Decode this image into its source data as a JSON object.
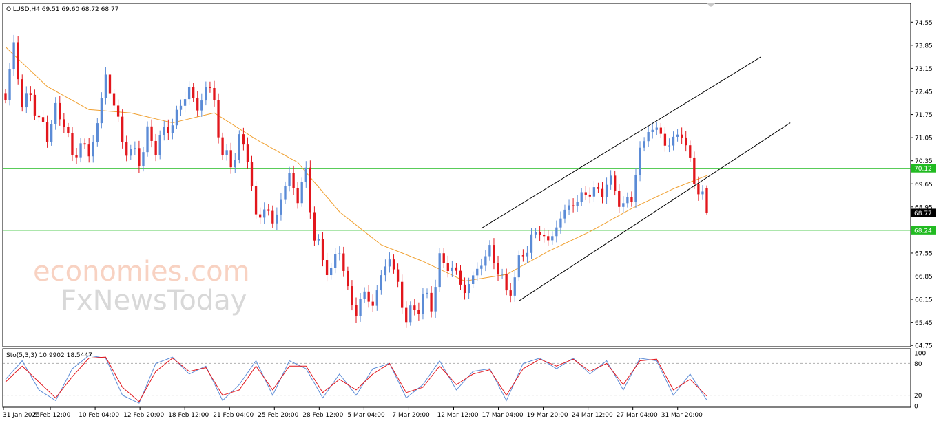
{
  "header": {
    "symbol_line": "OILUSD,H4  69.51 69.60 68.72 68.77"
  },
  "watermark": {
    "line1": "economies.com",
    "line2": "FxNewsToday"
  },
  "price_axis": {
    "ticks": [
      "74.55",
      "73.85",
      "73.15",
      "72.45",
      "71.75",
      "71.05",
      "70.35",
      "69.65",
      "68.95",
      "68.25",
      "67.55",
      "66.85",
      "66.15",
      "65.45",
      "64.75"
    ],
    "current_price_label": "68.77",
    "level_labels": [
      "70.12",
      "68.24"
    ]
  },
  "time_axis": {
    "labels": [
      "31 Jan 2025",
      "5 Feb 12:00",
      "10 Feb 04:00",
      "12 Feb 20:00",
      "18 Feb 12:00",
      "21 Feb 04:00",
      "25 Feb 20:00",
      "28 Feb 12:00",
      "5 Mar 04:00",
      "7 Mar 20:00",
      "12 Mar 12:00",
      "17 Mar 04:00",
      "19 Mar 20:00",
      "24 Mar 12:00",
      "27 Mar 04:00",
      "31 Mar 20:00"
    ]
  },
  "stochastic": {
    "label": "Sto(5,3,3) 10.9902 18.5447",
    "ticks": [
      "100",
      "80",
      "20",
      "0"
    ]
  },
  "colors": {
    "bull": "#5b8bd6",
    "bear": "#e2161c",
    "ma": "#f0a030",
    "level": "#22bb22",
    "current": "#999999",
    "stoch_main": "#5b8bd6",
    "stoch_signal": "#e2161c"
  },
  "chart_data": {
    "type": "candlestick",
    "symbol": "OILUSD",
    "timeframe": "H4",
    "ohlc_last": {
      "open": 69.51,
      "high": 69.6,
      "low": 68.72,
      "close": 68.77
    },
    "y_range": [
      64.75,
      74.55
    ],
    "levels": [
      70.12,
      68.24
    ],
    "current_price": 68.77,
    "close_path": [
      {
        "x": 0,
        "y": 72.2
      },
      {
        "x": 2,
        "y": 73.9
      },
      {
        "x": 4,
        "y": 72.0
      },
      {
        "x": 6,
        "y": 72.4
      },
      {
        "x": 8,
        "y": 71.5
      },
      {
        "x": 10,
        "y": 71.2
      },
      {
        "x": 12,
        "y": 71.8
      },
      {
        "x": 14,
        "y": 71.6
      },
      {
        "x": 16,
        "y": 70.4
      },
      {
        "x": 18,
        "y": 70.9
      },
      {
        "x": 20,
        "y": 70.5
      },
      {
        "x": 22,
        "y": 71.5
      },
      {
        "x": 24,
        "y": 72.9
      },
      {
        "x": 26,
        "y": 72.1
      },
      {
        "x": 28,
        "y": 70.9
      },
      {
        "x": 30,
        "y": 70.6
      },
      {
        "x": 32,
        "y": 70.4
      },
      {
        "x": 34,
        "y": 71.1
      },
      {
        "x": 36,
        "y": 70.8
      },
      {
        "x": 38,
        "y": 71.2
      },
      {
        "x": 40,
        "y": 71.5
      },
      {
        "x": 42,
        "y": 72.0
      },
      {
        "x": 44,
        "y": 72.6
      },
      {
        "x": 46,
        "y": 71.8
      },
      {
        "x": 48,
        "y": 72.7
      },
      {
        "x": 50,
        "y": 72.1
      },
      {
        "x": 52,
        "y": 70.5
      },
      {
        "x": 54,
        "y": 70.3
      },
      {
        "x": 56,
        "y": 70.9
      },
      {
        "x": 58,
        "y": 70.6
      },
      {
        "x": 60,
        "y": 68.5
      },
      {
        "x": 62,
        "y": 69.0
      },
      {
        "x": 64,
        "y": 68.4
      },
      {
        "x": 66,
        "y": 69.2
      },
      {
        "x": 68,
        "y": 69.9
      },
      {
        "x": 70,
        "y": 69.2
      },
      {
        "x": 72,
        "y": 70.0
      },
      {
        "x": 74,
        "y": 68.0
      },
      {
        "x": 76,
        "y": 67.4
      },
      {
        "x": 78,
        "y": 66.9
      },
      {
        "x": 80,
        "y": 67.8
      },
      {
        "x": 82,
        "y": 66.3
      },
      {
        "x": 84,
        "y": 65.8
      },
      {
        "x": 86,
        "y": 66.3
      },
      {
        "x": 88,
        "y": 66.0
      },
      {
        "x": 90,
        "y": 66.8
      },
      {
        "x": 92,
        "y": 67.5
      },
      {
        "x": 94,
        "y": 66.5
      },
      {
        "x": 96,
        "y": 65.6
      },
      {
        "x": 98,
        "y": 65.8
      },
      {
        "x": 100,
        "y": 66.2
      },
      {
        "x": 102,
        "y": 66.0
      },
      {
        "x": 104,
        "y": 67.3
      },
      {
        "x": 106,
        "y": 67.2
      },
      {
        "x": 108,
        "y": 66.9
      },
      {
        "x": 110,
        "y": 66.4
      },
      {
        "x": 112,
        "y": 66.8
      },
      {
        "x": 114,
        "y": 67.3
      },
      {
        "x": 116,
        "y": 67.6
      },
      {
        "x": 118,
        "y": 67.1
      },
      {
        "x": 120,
        "y": 66.3
      },
      {
        "x": 122,
        "y": 66.8
      },
      {
        "x": 124,
        "y": 67.6
      },
      {
        "x": 126,
        "y": 67.9
      },
      {
        "x": 128,
        "y": 68.3
      },
      {
        "x": 130,
        "y": 67.8
      },
      {
        "x": 132,
        "y": 68.4
      },
      {
        "x": 134,
        "y": 68.8
      },
      {
        "x": 136,
        "y": 69.1
      },
      {
        "x": 138,
        "y": 69.2
      },
      {
        "x": 140,
        "y": 69.5
      },
      {
        "x": 142,
        "y": 69.3
      },
      {
        "x": 144,
        "y": 69.7
      },
      {
        "x": 146,
        "y": 69.5
      },
      {
        "x": 148,
        "y": 68.9
      },
      {
        "x": 150,
        "y": 69.3
      },
      {
        "x": 152,
        "y": 70.6
      },
      {
        "x": 154,
        "y": 71.3
      },
      {
        "x": 156,
        "y": 71.3
      },
      {
        "x": 158,
        "y": 70.9
      },
      {
        "x": 160,
        "y": 70.9
      },
      {
        "x": 162,
        "y": 71.3
      },
      {
        "x": 164,
        "y": 70.2
      },
      {
        "x": 166,
        "y": 69.5
      },
      {
        "x": 168,
        "y": 68.77
      }
    ],
    "moving_average": [
      {
        "x": 0,
        "y": 73.8
      },
      {
        "x": 10,
        "y": 72.6
      },
      {
        "x": 20,
        "y": 71.9
      },
      {
        "x": 30,
        "y": 71.8
      },
      {
        "x": 40,
        "y": 71.5
      },
      {
        "x": 50,
        "y": 71.8
      },
      {
        "x": 60,
        "y": 71.0
      },
      {
        "x": 70,
        "y": 70.3
      },
      {
        "x": 80,
        "y": 68.8
      },
      {
        "x": 90,
        "y": 67.8
      },
      {
        "x": 100,
        "y": 67.3
      },
      {
        "x": 110,
        "y": 66.7
      },
      {
        "x": 120,
        "y": 66.9
      },
      {
        "x": 130,
        "y": 67.6
      },
      {
        "x": 140,
        "y": 68.2
      },
      {
        "x": 150,
        "y": 68.9
      },
      {
        "x": 160,
        "y": 69.5
      },
      {
        "x": 168,
        "y": 69.9
      }
    ],
    "channel_lines": [
      {
        "x1": 114,
        "y1": 68.3,
        "x2": 181,
        "y2": 73.5
      },
      {
        "x1": 123,
        "y1": 66.1,
        "x2": 188,
        "y2": 71.5
      }
    ],
    "stochastic_main": [
      {
        "x": 0,
        "y": 50
      },
      {
        "x": 4,
        "y": 85
      },
      {
        "x": 8,
        "y": 30
      },
      {
        "x": 12,
        "y": 10
      },
      {
        "x": 16,
        "y": 70
      },
      {
        "x": 20,
        "y": 95
      },
      {
        "x": 24,
        "y": 90
      },
      {
        "x": 28,
        "y": 20
      },
      {
        "x": 32,
        "y": 5
      },
      {
        "x": 36,
        "y": 80
      },
      {
        "x": 40,
        "y": 92
      },
      {
        "x": 44,
        "y": 60
      },
      {
        "x": 48,
        "y": 75
      },
      {
        "x": 52,
        "y": 10
      },
      {
        "x": 56,
        "y": 40
      },
      {
        "x": 60,
        "y": 85
      },
      {
        "x": 64,
        "y": 20
      },
      {
        "x": 68,
        "y": 85
      },
      {
        "x": 72,
        "y": 70
      },
      {
        "x": 76,
        "y": 15
      },
      {
        "x": 80,
        "y": 60
      },
      {
        "x": 84,
        "y": 20
      },
      {
        "x": 88,
        "y": 70
      },
      {
        "x": 92,
        "y": 80
      },
      {
        "x": 96,
        "y": 15
      },
      {
        "x": 100,
        "y": 40
      },
      {
        "x": 104,
        "y": 85
      },
      {
        "x": 108,
        "y": 30
      },
      {
        "x": 112,
        "y": 65
      },
      {
        "x": 116,
        "y": 70
      },
      {
        "x": 120,
        "y": 10
      },
      {
        "x": 124,
        "y": 80
      },
      {
        "x": 128,
        "y": 90
      },
      {
        "x": 132,
        "y": 70
      },
      {
        "x": 136,
        "y": 90
      },
      {
        "x": 140,
        "y": 60
      },
      {
        "x": 144,
        "y": 85
      },
      {
        "x": 148,
        "y": 30
      },
      {
        "x": 152,
        "y": 90
      },
      {
        "x": 156,
        "y": 85
      },
      {
        "x": 160,
        "y": 20
      },
      {
        "x": 164,
        "y": 60
      },
      {
        "x": 168,
        "y": 11
      }
    ],
    "stochastic_signal": [
      {
        "x": 0,
        "y": 45
      },
      {
        "x": 4,
        "y": 75
      },
      {
        "x": 8,
        "y": 45
      },
      {
        "x": 12,
        "y": 15
      },
      {
        "x": 16,
        "y": 55
      },
      {
        "x": 20,
        "y": 90
      },
      {
        "x": 24,
        "y": 92
      },
      {
        "x": 28,
        "y": 35
      },
      {
        "x": 32,
        "y": 8
      },
      {
        "x": 36,
        "y": 65
      },
      {
        "x": 40,
        "y": 90
      },
      {
        "x": 44,
        "y": 65
      },
      {
        "x": 48,
        "y": 72
      },
      {
        "x": 52,
        "y": 20
      },
      {
        "x": 56,
        "y": 30
      },
      {
        "x": 60,
        "y": 75
      },
      {
        "x": 64,
        "y": 30
      },
      {
        "x": 68,
        "y": 75
      },
      {
        "x": 72,
        "y": 75
      },
      {
        "x": 76,
        "y": 25
      },
      {
        "x": 80,
        "y": 50
      },
      {
        "x": 84,
        "y": 30
      },
      {
        "x": 88,
        "y": 60
      },
      {
        "x": 92,
        "y": 80
      },
      {
        "x": 96,
        "y": 25
      },
      {
        "x": 100,
        "y": 35
      },
      {
        "x": 104,
        "y": 75
      },
      {
        "x": 108,
        "y": 40
      },
      {
        "x": 112,
        "y": 60
      },
      {
        "x": 116,
        "y": 68
      },
      {
        "x": 120,
        "y": 20
      },
      {
        "x": 124,
        "y": 70
      },
      {
        "x": 128,
        "y": 88
      },
      {
        "x": 132,
        "y": 75
      },
      {
        "x": 136,
        "y": 88
      },
      {
        "x": 140,
        "y": 65
      },
      {
        "x": 144,
        "y": 80
      },
      {
        "x": 148,
        "y": 40
      },
      {
        "x": 152,
        "y": 85
      },
      {
        "x": 156,
        "y": 88
      },
      {
        "x": 160,
        "y": 30
      },
      {
        "x": 164,
        "y": 50
      },
      {
        "x": 168,
        "y": 18.5
      }
    ]
  }
}
